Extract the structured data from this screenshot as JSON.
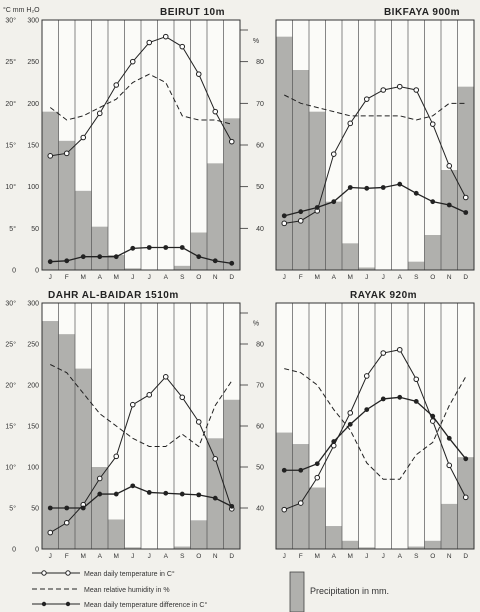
{
  "units_header": "°C  mm H₂O",
  "legend": {
    "temperature": "Mean daily temperature in C°",
    "humidity": "Mean relative humidity in %",
    "difference": "Mean daily temperature difference in C°",
    "precipitation": "Precipitation in mm."
  },
  "chart_data": [
    {
      "type": "bar",
      "title": "BEIRUT 10m",
      "categories": [
        "J",
        "F",
        "M",
        "A",
        "M",
        "J",
        "J",
        "A",
        "S",
        "O",
        "N",
        "D"
      ],
      "axes": {
        "temperature_C": [
          0,
          30
        ],
        "precipitation_mm": [
          0,
          300
        ],
        "humidity_pct": [
          30,
          90
        ]
      },
      "right_ticks": [
        "%",
        "80",
        "70",
        "60",
        "50",
        "40"
      ],
      "series": [
        {
          "name": "Precipitation in mm.",
          "values": [
            190,
            155,
            95,
            52,
            18,
            2,
            0,
            0,
            5,
            45,
            128,
            182
          ]
        },
        {
          "name": "Mean daily temperature in C°",
          "values": [
            13.7,
            14.0,
            15.9,
            18.8,
            22.2,
            25.0,
            27.3,
            28.0,
            26.8,
            23.5,
            19.0,
            15.4
          ]
        },
        {
          "name": "Mean relative humidity in %",
          "values": [
            69,
            66,
            67,
            69,
            71,
            75,
            77,
            75,
            67,
            66,
            66,
            65
          ]
        },
        {
          "name": "Mean daily temperature difference in C°",
          "values": [
            1.0,
            1.1,
            1.6,
            1.6,
            1.6,
            2.6,
            2.7,
            2.7,
            2.7,
            1.6,
            1.1,
            0.8
          ]
        }
      ]
    },
    {
      "type": "bar",
      "title": "BIKFAYA 900m",
      "categories": [
        "J",
        "F",
        "M",
        "A",
        "M",
        "J",
        "J",
        "A",
        "S",
        "O",
        "N",
        "D"
      ],
      "axes": {
        "temperature_C": [
          0,
          30
        ],
        "precipitation_mm": [
          0,
          300
        ],
        "humidity_pct": [
          30,
          90
        ]
      },
      "series": [
        {
          "name": "Precipitation in mm.",
          "values": [
            280,
            240,
            190,
            82,
            32,
            3,
            0,
            0,
            10,
            42,
            120,
            220
          ]
        },
        {
          "name": "Mean daily temperature in C°",
          "values": [
            5.6,
            5.9,
            7.1,
            13.9,
            17.6,
            20.5,
            21.6,
            22.0,
            21.6,
            17.5,
            12.5,
            8.7
          ]
        },
        {
          "name": "Mean relative humidity in %",
          "values": [
            72,
            70,
            69,
            68,
            67,
            67,
            67,
            67,
            66,
            67,
            70,
            70
          ]
        },
        {
          "name": "Mean daily temperature difference in C°",
          "values": [
            6.5,
            7.0,
            7.5,
            8.2,
            9.9,
            9.8,
            9.9,
            10.3,
            9.2,
            8.2,
            7.8,
            6.9
          ]
        }
      ]
    },
    {
      "type": "bar",
      "title": "DAHR AL-BAIDAR 1510m",
      "categories": [
        "J",
        "F",
        "M",
        "A",
        "M",
        "J",
        "J",
        "A",
        "S",
        "O",
        "N",
        "D"
      ],
      "axes": {
        "temperature_C": [
          0,
          30
        ],
        "precipitation_mm": [
          0,
          300
        ],
        "humidity_pct": [
          30,
          90
        ]
      },
      "series": [
        {
          "name": "Precipitation in mm.",
          "values": [
            278,
            262,
            220,
            100,
            36,
            2,
            0,
            0,
            3,
            35,
            135,
            182
          ]
        },
        {
          "name": "Mean daily temperature in C°",
          "values": [
            2.0,
            3.2,
            5.4,
            8.6,
            11.3,
            17.6,
            18.8,
            21.0,
            18.5,
            15.5,
            11.0,
            4.9
          ]
        },
        {
          "name": "Mean relative humidity in %",
          "values": [
            75,
            73,
            68,
            63,
            60,
            57,
            55,
            55,
            58,
            55,
            65,
            71
          ]
        },
        {
          "name": "Mean daily temperature difference in C°",
          "values": [
            5.0,
            5.0,
            5.0,
            6.7,
            6.7,
            7.7,
            6.9,
            6.8,
            6.7,
            6.6,
            6.2,
            5.2
          ]
        }
      ]
    },
    {
      "type": "bar",
      "title": "RAYAK 920m",
      "categories": [
        "J",
        "F",
        "M",
        "A",
        "M",
        "J",
        "J",
        "A",
        "S",
        "O",
        "N",
        "D"
      ],
      "axes": {
        "temperature_C": [
          0,
          30
        ],
        "precipitation_mm": [
          0,
          300
        ],
        "humidity_pct": [
          30,
          90
        ]
      },
      "series": [
        {
          "name": "Precipitation in mm.",
          "values": [
            142,
            128,
            75,
            28,
            10,
            2,
            0,
            0,
            3,
            10,
            55,
            112
          ]
        },
        {
          "name": "Mean daily temperature in C°",
          "values": [
            4.8,
            5.6,
            8.7,
            12.6,
            16.6,
            21.1,
            23.9,
            24.3,
            20.7,
            15.6,
            10.2,
            6.3
          ]
        },
        {
          "name": "Mean relative humidity in %",
          "values": [
            74,
            73,
            70,
            64,
            59,
            51,
            47,
            47,
            53,
            56,
            65,
            72
          ]
        },
        {
          "name": "Mean daily temperature difference in C°",
          "values": [
            9.6,
            9.6,
            10.4,
            13.1,
            15.2,
            17.0,
            18.3,
            18.5,
            18.0,
            16.2,
            13.5,
            11.0
          ]
        }
      ]
    }
  ]
}
